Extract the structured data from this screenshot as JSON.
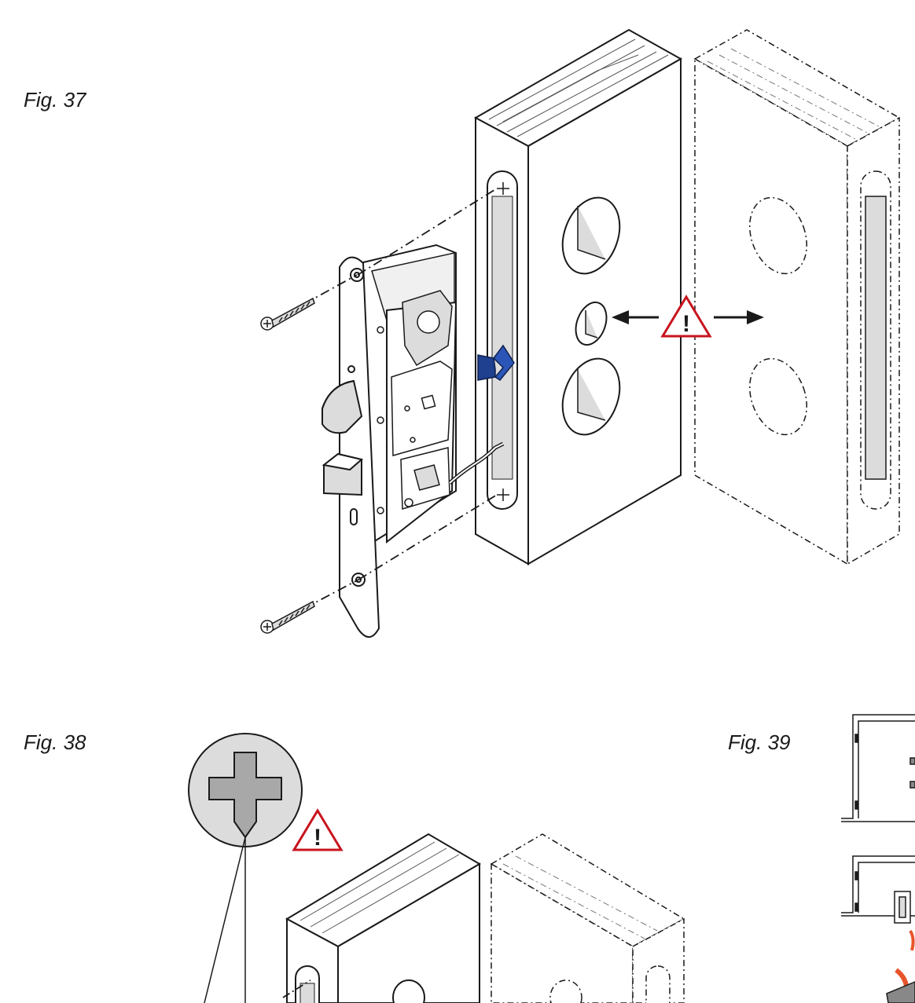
{
  "figures": {
    "fig37": {
      "label": "Fig. 37"
    },
    "fig38": {
      "label": "Fig. 38"
    },
    "fig39": {
      "label": "Fig. 39"
    }
  },
  "warning": {
    "symbol": "!"
  },
  "colors": {
    "line": "#1a1a1a",
    "fill_gray": "#dcdcdc",
    "warning_red": "#c8141e",
    "arrow_blue": "#1f3f8f",
    "accent_orange": "#e8552b"
  },
  "icons": [
    "warning-triangle-icon",
    "phillips-cross-icon",
    "screw-icon",
    "insertion-arrow-icon"
  ]
}
